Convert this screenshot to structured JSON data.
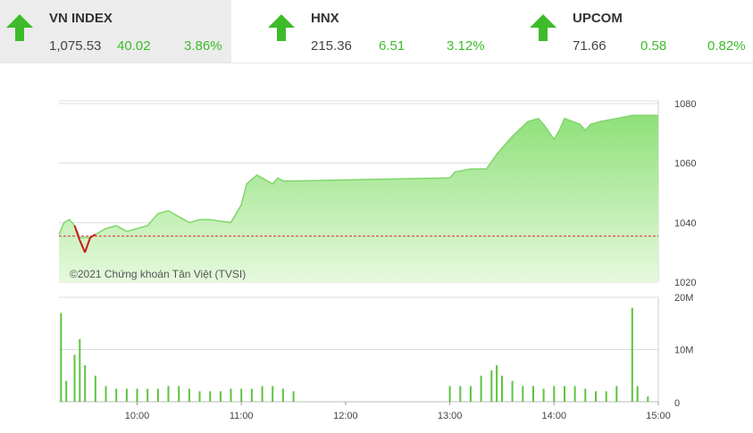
{
  "tickers": [
    {
      "name": "VN INDEX",
      "value": "1,075.53",
      "change": "40.02",
      "percent": "3.86%",
      "direction": "up",
      "active": true
    },
    {
      "name": "HNX",
      "value": "215.36",
      "change": "6.51",
      "percent": "3.12%",
      "direction": "up",
      "active": false
    },
    {
      "name": "UPCOM",
      "value": "71.66",
      "change": "0.58",
      "percent": "0.82%",
      "direction": "up",
      "active": false
    }
  ],
  "colors": {
    "up": "#3dbb2a",
    "down": "#cc1a1a",
    "reference": "#e03030",
    "area_top": "#8fe07a",
    "volume": "#5cc43f"
  },
  "chart_data": [
    {
      "type": "area",
      "series": [
        {
          "values": [
            [
              9.25,
              1036
            ],
            [
              9.3,
              1040
            ],
            [
              9.35,
              1041
            ],
            [
              9.4,
              1039
            ],
            [
              9.45,
              1034
            ],
            [
              9.5,
              1030
            ],
            [
              9.55,
              1035
            ],
            [
              9.6,
              1036
            ],
            [
              9.7,
              1038
            ],
            [
              9.8,
              1039
            ],
            [
              9.9,
              1037
            ],
            [
              10.0,
              1038
            ],
            [
              10.1,
              1039
            ],
            [
              10.2,
              1043
            ],
            [
              10.3,
              1044
            ],
            [
              10.4,
              1042
            ],
            [
              10.5,
              1040
            ],
            [
              10.6,
              1041
            ],
            [
              10.7,
              1041
            ],
            [
              10.8,
              1040.5
            ],
            [
              10.9,
              1040
            ],
            [
              11.0,
              1046
            ],
            [
              11.05,
              1053
            ],
            [
              11.15,
              1056
            ],
            [
              11.25,
              1054
            ],
            [
              11.3,
              1053
            ],
            [
              11.35,
              1055
            ],
            [
              11.4,
              1054
            ],
            [
              11.5,
              1054
            ],
            [
              13.0,
              1055
            ],
            [
              13.05,
              1057
            ],
            [
              13.2,
              1058
            ],
            [
              13.35,
              1058
            ],
            [
              13.45,
              1063
            ],
            [
              13.6,
              1069
            ],
            [
              13.75,
              1074
            ],
            [
              13.85,
              1075
            ],
            [
              13.9,
              1073
            ],
            [
              14.0,
              1068
            ],
            [
              14.05,
              1071
            ],
            [
              14.1,
              1075
            ],
            [
              14.25,
              1073
            ],
            [
              14.3,
              1071
            ],
            [
              14.35,
              1073
            ],
            [
              14.45,
              1074
            ],
            [
              14.6,
              1075
            ],
            [
              14.75,
              1076
            ],
            [
              15.0,
              1076
            ]
          ]
        }
      ],
      "reference_value": 1035.5,
      "y_ticks": [
        1020,
        1040,
        1060,
        1080
      ],
      "ylim": [
        1020,
        1085
      ],
      "xlim": [
        9.25,
        15.0
      ],
      "credit": "©2021 Chứng khoán Tân Việt (TVSI)"
    },
    {
      "type": "bar",
      "series": [
        {
          "values": [
            [
              9.27,
              17
            ],
            [
              9.32,
              4
            ],
            [
              9.4,
              9
            ],
            [
              9.45,
              12
            ],
            [
              9.5,
              7
            ],
            [
              9.6,
              5
            ],
            [
              9.7,
              3
            ],
            [
              9.8,
              2.5
            ],
            [
              9.9,
              2.5
            ],
            [
              10.0,
              2.5
            ],
            [
              10.1,
              2.5
            ],
            [
              10.2,
              2.5
            ],
            [
              10.3,
              3
            ],
            [
              10.4,
              3
            ],
            [
              10.5,
              2.5
            ],
            [
              10.6,
              2
            ],
            [
              10.7,
              2
            ],
            [
              10.8,
              2
            ],
            [
              10.9,
              2.5
            ],
            [
              11.0,
              2.5
            ],
            [
              11.1,
              2.5
            ],
            [
              11.2,
              3
            ],
            [
              11.3,
              3
            ],
            [
              11.4,
              2.5
            ],
            [
              11.5,
              2
            ],
            [
              13.0,
              3
            ],
            [
              13.1,
              3
            ],
            [
              13.2,
              3
            ],
            [
              13.3,
              5
            ],
            [
              13.4,
              6
            ],
            [
              13.45,
              7
            ],
            [
              13.5,
              5
            ],
            [
              13.6,
              4
            ],
            [
              13.7,
              3
            ],
            [
              13.8,
              3
            ],
            [
              13.9,
              2.5
            ],
            [
              14.0,
              3
            ],
            [
              14.1,
              3
            ],
            [
              14.2,
              3
            ],
            [
              14.3,
              2.5
            ],
            [
              14.4,
              2
            ],
            [
              14.5,
              2
            ],
            [
              14.6,
              3
            ],
            [
              14.75,
              18
            ],
            [
              14.8,
              3
            ],
            [
              14.9,
              1
            ]
          ]
        }
      ],
      "y_ticks": [
        {
          "v": 0,
          "label": "0"
        },
        {
          "v": 10,
          "label": "10M"
        },
        {
          "v": 20,
          "label": "20M"
        }
      ],
      "ylim": [
        0,
        20
      ],
      "x_ticks": [
        {
          "v": 10,
          "label": "10:00"
        },
        {
          "v": 11,
          "label": "11:00"
        },
        {
          "v": 12,
          "label": "12:00"
        },
        {
          "v": 13,
          "label": "13:00"
        },
        {
          "v": 14,
          "label": "14:00"
        },
        {
          "v": 15,
          "label": "15:00"
        }
      ],
      "xlim": [
        9.25,
        15.0
      ]
    }
  ]
}
